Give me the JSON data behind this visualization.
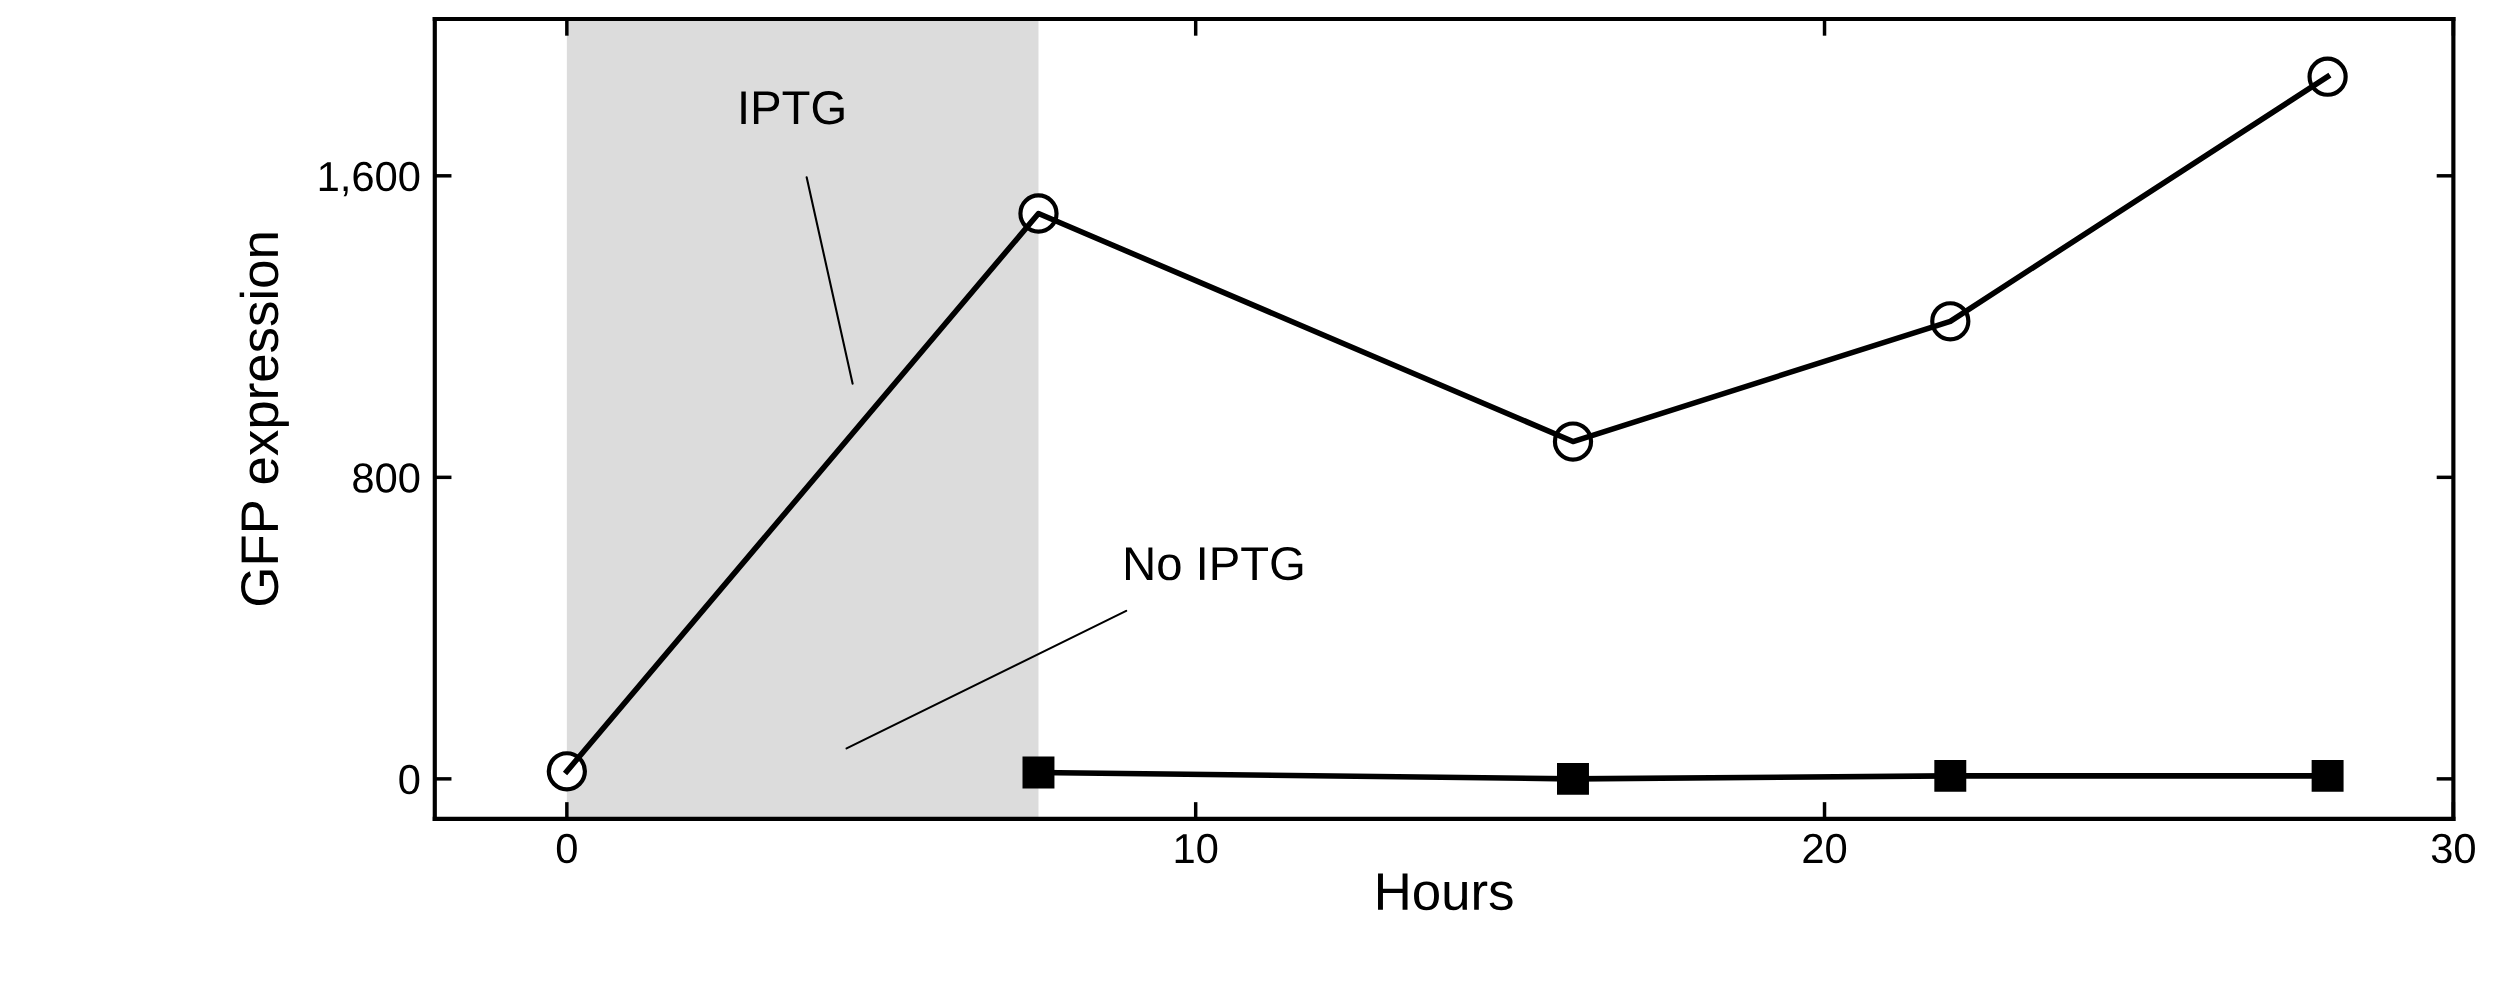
{
  "chart_data": {
    "type": "line",
    "xlabel": "Hours",
    "ylabel": "GFP expression",
    "x": [
      0,
      7.5,
      16,
      22,
      28
    ],
    "series": [
      {
        "values": [
          20,
          1500,
          895,
          1214,
          1863
        ],
        "color": "#000000",
        "marker": "circle"
      },
      {
        "values": [
          null,
          17,
          0,
          8,
          8
        ],
        "color": "#000000",
        "marker": "square"
      }
    ],
    "xlim": [
      -2.1,
      30
    ],
    "ylim": [
      -106,
      2016
    ],
    "xticks": [
      0,
      10,
      20,
      30
    ],
    "yticks": [
      {
        "value": 0,
        "label": "0"
      },
      {
        "value": 800,
        "label": "800"
      },
      {
        "value": 1600,
        "label": "1,600"
      }
    ],
    "bands": [
      {
        "axis": "x",
        "from": 0,
        "to": 7.5,
        "color": "#dcdcdc"
      }
    ],
    "annotations": [
      "IPTG",
      "No IPTG"
    ],
    "grid": false,
    "legend": false,
    "line_style": "solid"
  }
}
